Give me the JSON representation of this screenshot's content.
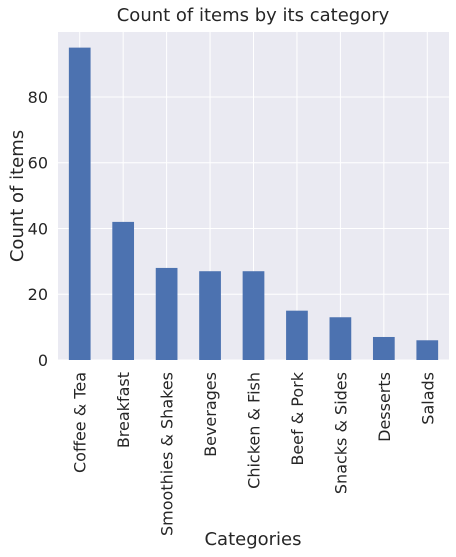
{
  "chart_data": {
    "type": "bar",
    "title": "Count of items by its category",
    "xlabel": "Categories",
    "ylabel": "Count of items",
    "categories": [
      "Coffee & Tea",
      "Breakfast",
      "Smoothies & Shakes",
      "Beverages",
      "Chicken & Fish",
      "Beef & Pork",
      "Snacks & Sides",
      "Desserts",
      "Salads"
    ],
    "values": [
      95,
      42,
      28,
      27,
      27,
      15,
      13,
      7,
      6
    ],
    "ylim": [
      0,
      99.75
    ],
    "yticks": [
      0,
      20,
      40,
      60,
      80
    ],
    "grid": true,
    "colors": {
      "bar": "#4c72b0",
      "plot_background": "#eaeaf2",
      "grid": "#ffffff",
      "text": "#262626"
    }
  }
}
